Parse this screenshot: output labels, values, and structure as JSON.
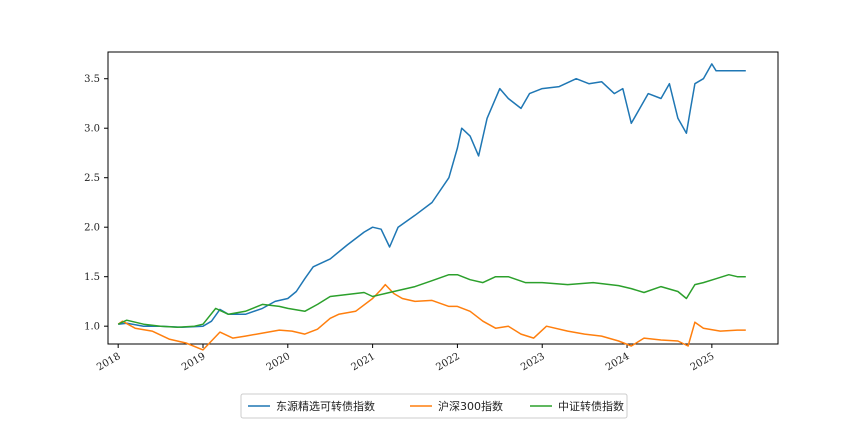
{
  "chart_data": {
    "type": "line",
    "title": "",
    "xlabel": "",
    "ylabel": "",
    "xlim": [
      2017.88,
      2025.78
    ],
    "ylim": [
      0.82,
      3.77
    ],
    "grid": false,
    "legend_position": "bottom-center",
    "x_ticks": [
      2018,
      2019,
      2020,
      2021,
      2022,
      2023,
      2024,
      2025
    ],
    "x_tick_labels": [
      "2018",
      "2019",
      "2020",
      "2021",
      "2022",
      "2023",
      "2024",
      "2025"
    ],
    "y_ticks": [
      1.0,
      1.5,
      2.0,
      2.5,
      3.0,
      3.5
    ],
    "y_tick_labels": [
      "1.0",
      "1.5",
      "2.0",
      "2.5",
      "3.0",
      "3.5"
    ],
    "series": [
      {
        "name": "东源精选可转债指数",
        "color": "#1f77b4",
        "x": [
          2018.0,
          2018.1,
          2018.3,
          2018.5,
          2018.75,
          2019.0,
          2019.1,
          2019.2,
          2019.3,
          2019.5,
          2019.7,
          2019.85,
          2020.0,
          2020.1,
          2020.2,
          2020.3,
          2020.5,
          2020.7,
          2020.9,
          2021.0,
          2021.1,
          2021.2,
          2021.3,
          2021.5,
          2021.7,
          2021.9,
          2022.0,
          2022.05,
          2022.15,
          2022.25,
          2022.35,
          2022.5,
          2022.6,
          2022.75,
          2022.85,
          2023.0,
          2023.2,
          2023.4,
          2023.55,
          2023.7,
          2023.85,
          2023.95,
          2024.05,
          2024.15,
          2024.25,
          2024.4,
          2024.5,
          2024.6,
          2024.7,
          2024.75,
          2024.8,
          2024.9,
          2025.0,
          2025.05,
          2025.2,
          2025.4
        ],
        "values": [
          1.02,
          1.03,
          1.0,
          1.0,
          0.99,
          1.0,
          1.05,
          1.17,
          1.12,
          1.12,
          1.18,
          1.25,
          1.28,
          1.35,
          1.48,
          1.6,
          1.68,
          1.82,
          1.95,
          2.0,
          1.98,
          1.8,
          2.0,
          2.12,
          2.25,
          2.5,
          2.8,
          3.0,
          2.92,
          2.72,
          3.1,
          3.4,
          3.3,
          3.2,
          3.35,
          3.4,
          3.42,
          3.5,
          3.45,
          3.47,
          3.35,
          3.4,
          3.05,
          3.2,
          3.35,
          3.3,
          3.45,
          3.1,
          2.95,
          3.2,
          3.45,
          3.5,
          3.65,
          3.58,
          3.58,
          3.58
        ]
      },
      {
        "name": "沪深300指数",
        "color": "#ff7f0e",
        "x": [
          2018.0,
          2018.05,
          2018.2,
          2018.4,
          2018.6,
          2018.8,
          2019.0,
          2019.2,
          2019.35,
          2019.5,
          2019.7,
          2019.9,
          2020.05,
          2020.2,
          2020.35,
          2020.5,
          2020.6,
          2020.8,
          2021.0,
          2021.1,
          2021.15,
          2021.25,
          2021.35,
          2021.5,
          2021.7,
          2021.9,
          2022.0,
          2022.15,
          2022.3,
          2022.45,
          2022.6,
          2022.75,
          2022.9,
          2023.05,
          2023.3,
          2023.5,
          2023.7,
          2023.9,
          2024.05,
          2024.2,
          2024.4,
          2024.6,
          2024.72,
          2024.8,
          2024.9,
          2025.1,
          2025.3,
          2025.4
        ],
        "values": [
          1.02,
          1.05,
          0.98,
          0.95,
          0.87,
          0.83,
          0.76,
          0.94,
          0.88,
          0.9,
          0.93,
          0.96,
          0.95,
          0.92,
          0.97,
          1.08,
          1.12,
          1.15,
          1.28,
          1.37,
          1.42,
          1.33,
          1.28,
          1.25,
          1.26,
          1.2,
          1.2,
          1.15,
          1.05,
          0.98,
          1.0,
          0.92,
          0.88,
          1.0,
          0.95,
          0.92,
          0.9,
          0.85,
          0.8,
          0.88,
          0.86,
          0.85,
          0.8,
          1.04,
          0.98,
          0.95,
          0.96,
          0.96
        ]
      },
      {
        "name": "中证转债指数",
        "color": "#2ca02c",
        "x": [
          2018.0,
          2018.1,
          2018.3,
          2018.5,
          2018.7,
          2018.9,
          2019.0,
          2019.15,
          2019.3,
          2019.5,
          2019.7,
          2019.9,
          2020.0,
          2020.2,
          2020.35,
          2020.5,
          2020.7,
          2020.9,
          2021.0,
          2021.15,
          2021.3,
          2021.5,
          2021.7,
          2021.9,
          2022.0,
          2022.15,
          2022.3,
          2022.45,
          2022.6,
          2022.8,
          2023.0,
          2023.3,
          2023.6,
          2023.9,
          2024.05,
          2024.2,
          2024.4,
          2024.6,
          2024.7,
          2024.8,
          2024.9,
          2025.05,
          2025.2,
          2025.3,
          2025.4
        ],
        "values": [
          1.02,
          1.06,
          1.02,
          1.0,
          0.99,
          1.0,
          1.02,
          1.18,
          1.12,
          1.15,
          1.22,
          1.2,
          1.18,
          1.15,
          1.22,
          1.3,
          1.32,
          1.34,
          1.3,
          1.33,
          1.36,
          1.4,
          1.46,
          1.52,
          1.52,
          1.47,
          1.44,
          1.5,
          1.5,
          1.44,
          1.44,
          1.42,
          1.44,
          1.41,
          1.38,
          1.34,
          1.4,
          1.35,
          1.28,
          1.42,
          1.44,
          1.48,
          1.52,
          1.5,
          1.5
        ]
      }
    ]
  }
}
